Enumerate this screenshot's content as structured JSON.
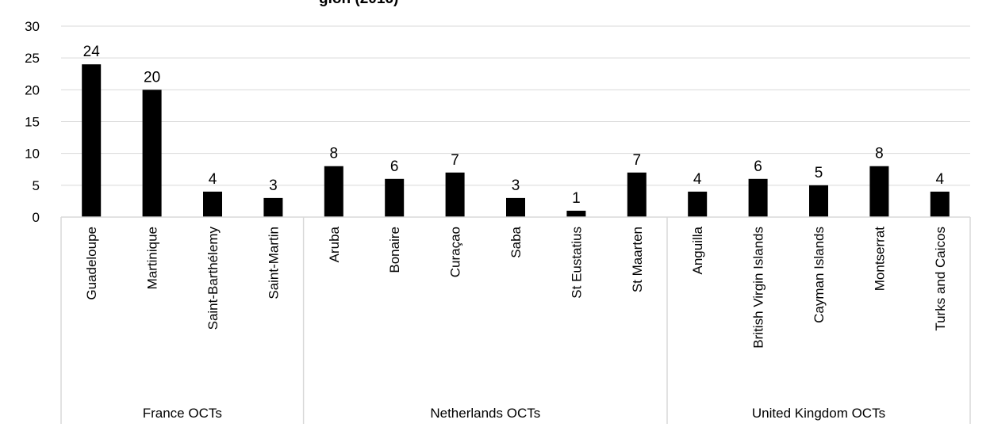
{
  "chart_data": {
    "type": "bar",
    "title": "",
    "title_partial_visible": "gion (2016)",
    "xlabel": "",
    "ylabel": "",
    "ylim": [
      0,
      30
    ],
    "yticks": [
      0,
      5,
      10,
      15,
      20,
      25,
      30
    ],
    "grid": true,
    "legend": "none",
    "bar_color": "#000000",
    "grid_color": "#d9d9d9",
    "groups": [
      {
        "name": "France OCTs",
        "categories": [
          "Guadeloupe",
          "Martinique",
          "Saint-Barthélemy",
          "Saint-Martin"
        ],
        "values": [
          24,
          20,
          4,
          3
        ]
      },
      {
        "name": "Netherlands OCTs",
        "categories": [
          "Aruba",
          "Bonaire",
          "Curaçao",
          "Saba",
          "St Eustatius",
          "St Maarten"
        ],
        "values": [
          8,
          6,
          7,
          3,
          1,
          7
        ]
      },
      {
        "name": "United Kingdom OCTs",
        "categories": [
          "Anguilla",
          "British Virgin Islands",
          "Cayman Islands",
          "Montserrat",
          "Turks and Caicos"
        ],
        "values": [
          4,
          6,
          5,
          8,
          4
        ]
      }
    ]
  }
}
